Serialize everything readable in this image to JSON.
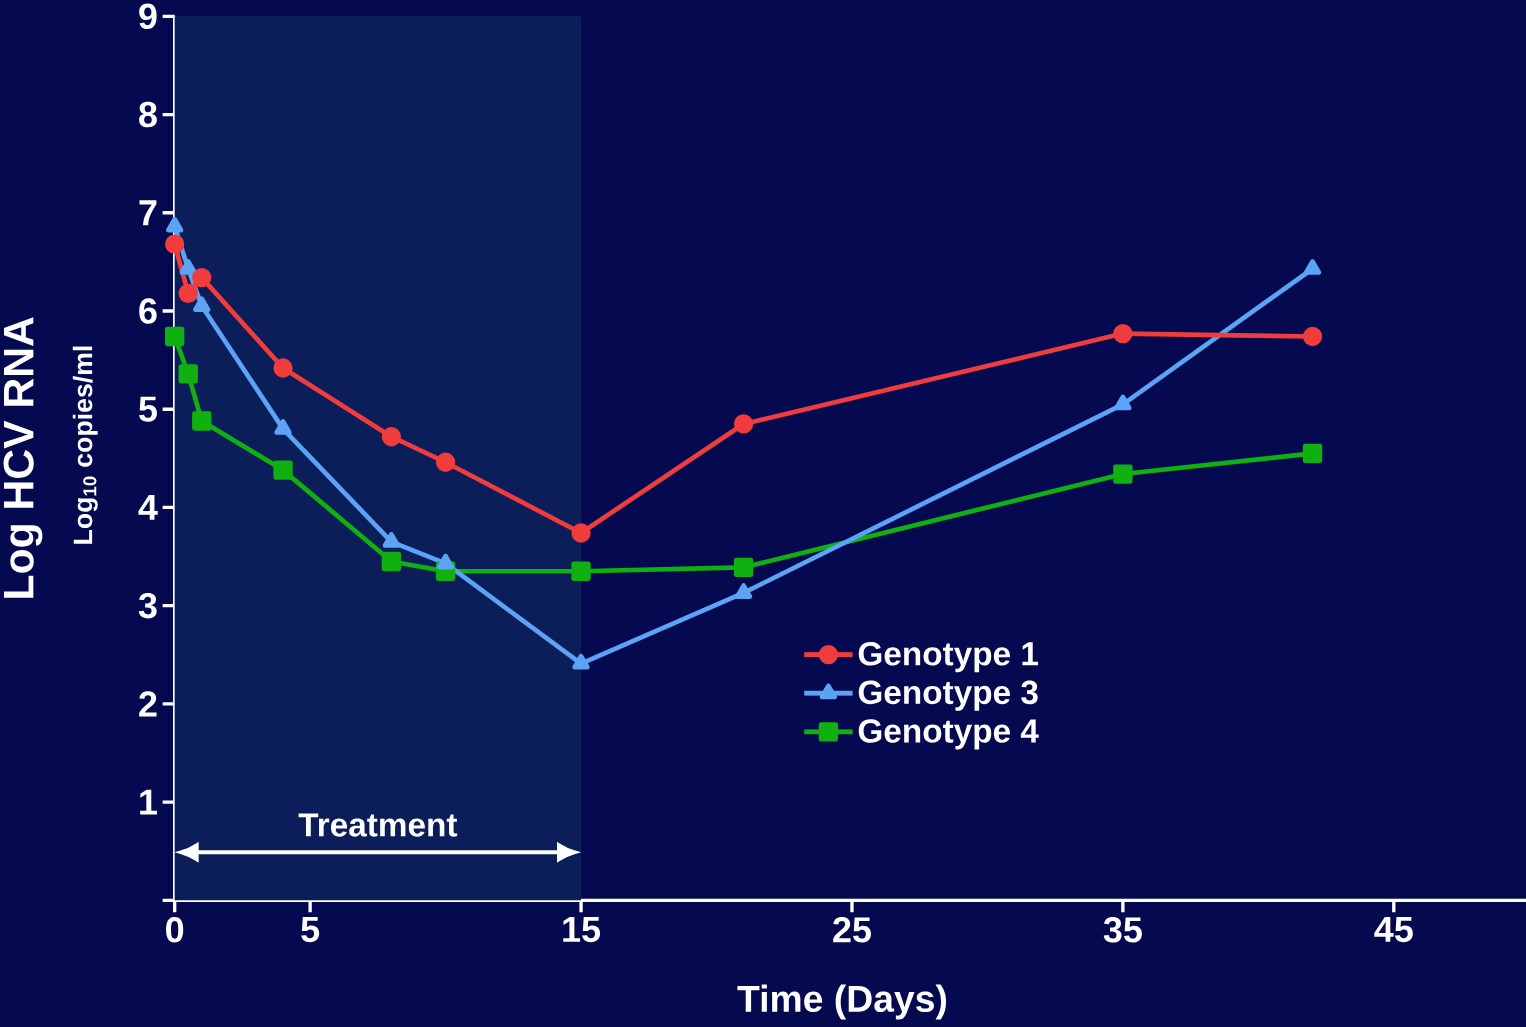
{
  "chart_data": {
    "type": "line",
    "xlabel": "Time (Days)",
    "ylabel": "Log HCV RNA",
    "annotations": [
      "Log$_{10}$ copies/ml"
    ],
    "x": [
      0,
      0.5,
      1,
      4,
      8,
      10,
      15,
      21,
      35,
      42
    ],
    "series": [
      {
        "name": "Genotype 1",
        "color": "#f03c3c",
        "marker": "circle",
        "values": [
          6.68,
          6.18,
          6.34,
          5.42,
          4.72,
          4.46,
          3.74,
          4.85,
          5.77,
          5.74
        ]
      },
      {
        "name": "Genotype 3",
        "color": "#5ba3f5",
        "marker": "triangle",
        "values": [
          6.86,
          6.43,
          6.05,
          4.8,
          3.65,
          3.43,
          2.41,
          3.13,
          5.05,
          6.43
        ]
      },
      {
        "name": "Genotype 4",
        "color": "#10b010",
        "marker": "square",
        "values": [
          5.74,
          5.36,
          4.88,
          4.38,
          3.45,
          3.35,
          3.35,
          3.39,
          4.34,
          4.55
        ]
      }
    ],
    "xlim": [
      0,
      50
    ],
    "ylim": [
      0,
      9
    ],
    "xticks": [
      0,
      5,
      15,
      25,
      35,
      45
    ],
    "yticks": [
      {
        "value": 0,
        "label": null
      },
      1,
      2,
      3,
      4,
      5,
      6,
      7,
      8,
      9
    ],
    "bands": [
      {
        "axis": "x",
        "from": 0,
        "to": 15,
        "label": "Treatment",
        "color": "#0b1e5a"
      }
    ],
    "legend": "right",
    "line_style": "solid"
  }
}
